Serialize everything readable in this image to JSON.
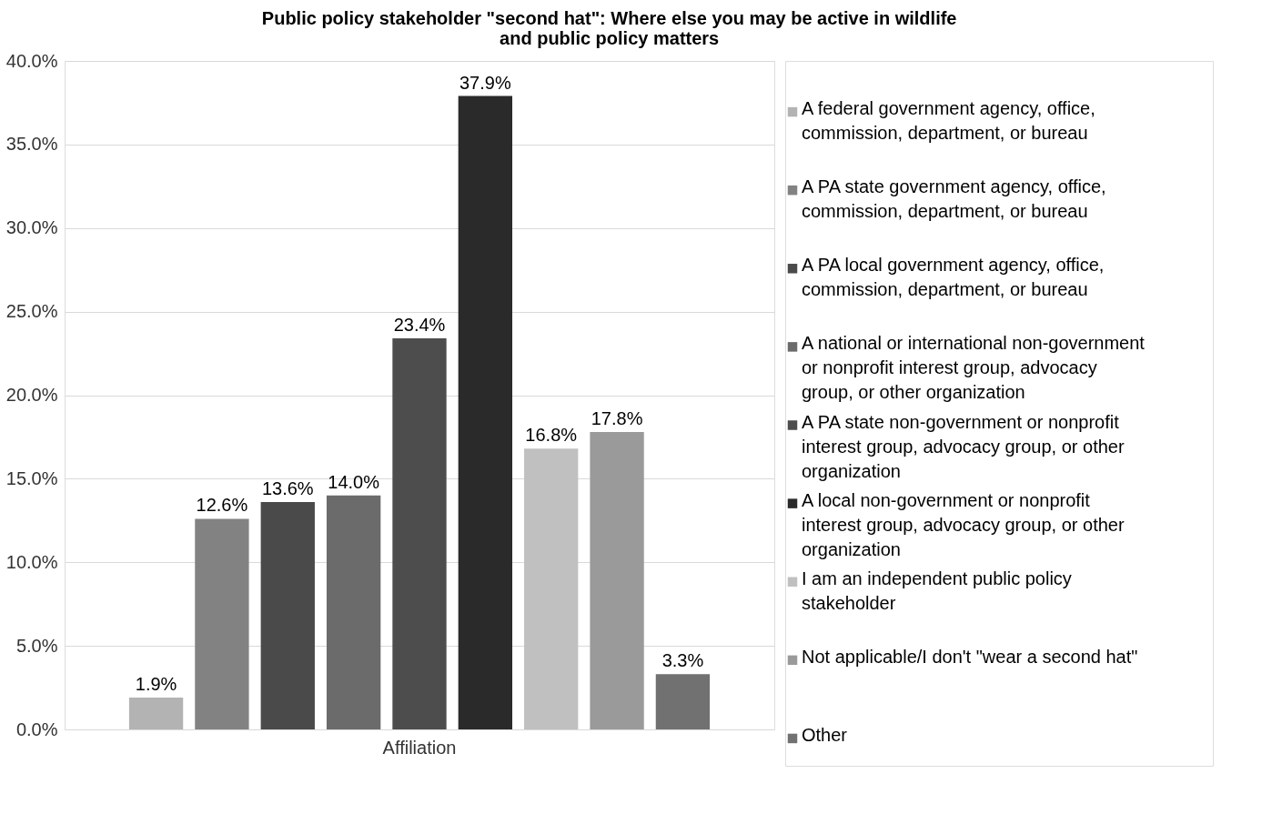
{
  "chart_data": {
    "type": "bar",
    "title": "Public policy stakeholder \"second hat\": Where else you may be active in wildlife and public policy matters",
    "categories": [
      "Affiliation"
    ],
    "series": [
      {
        "name": "A federal government agency, office, commission, department, or bureau",
        "color": "#b3b3b3",
        "values": [
          1.9
        ],
        "value_labels": [
          "1.9%"
        ]
      },
      {
        "name": "A PA state government agency, office, commission, department, or bureau",
        "color": "#828282",
        "values": [
          12.6
        ],
        "value_labels": [
          "12.6%"
        ]
      },
      {
        "name": "A PA local government agency, office, commission, department, or bureau",
        "color": "#4a4a4a",
        "values": [
          13.6
        ],
        "value_labels": [
          "13.6%"
        ]
      },
      {
        "name": "A national or international non-government or nonprofit interest group, advocacy group, or other organization",
        "color": "#6b6b6b",
        "values": [
          14.0
        ],
        "value_labels": [
          "14.0%"
        ]
      },
      {
        "name": "A PA state non-government or nonprofit interest group, advocacy group, or other organization",
        "color": "#4d4d4d",
        "values": [
          23.4
        ],
        "value_labels": [
          "23.4%"
        ]
      },
      {
        "name": "A local non-government or nonprofit interest group, advocacy group, or other organization",
        "color": "#2a2a2a",
        "values": [
          37.9
        ],
        "value_labels": [
          "37.9%"
        ]
      },
      {
        "name": "I am an independent public policy stakeholder",
        "color": "#c0c0c0",
        "values": [
          16.8
        ],
        "value_labels": [
          "16.8%"
        ]
      },
      {
        "name": "Not applicable/I don't \"wear a second hat\"",
        "color": "#9a9a9a",
        "values": [
          17.8
        ],
        "value_labels": [
          "17.8%"
        ]
      },
      {
        "name": "Other",
        "color": "#717171",
        "values": [
          3.3
        ],
        "value_labels": [
          "3.3%"
        ]
      }
    ],
    "ylim": [
      0,
      40
    ],
    "yticks": [
      {
        "value": 0,
        "label": "0.0%"
      },
      {
        "value": 5,
        "label": "5.0%"
      },
      {
        "value": 10,
        "label": "10.0%"
      },
      {
        "value": 15,
        "label": "15.0%"
      },
      {
        "value": 20,
        "label": "20.0%"
      },
      {
        "value": 25,
        "label": "25.0%"
      },
      {
        "value": 30,
        "label": "30.0%"
      },
      {
        "value": 35,
        "label": "35.0%"
      },
      {
        "value": 40,
        "label": "40.0%"
      }
    ],
    "grid": "y",
    "legend": "right"
  }
}
